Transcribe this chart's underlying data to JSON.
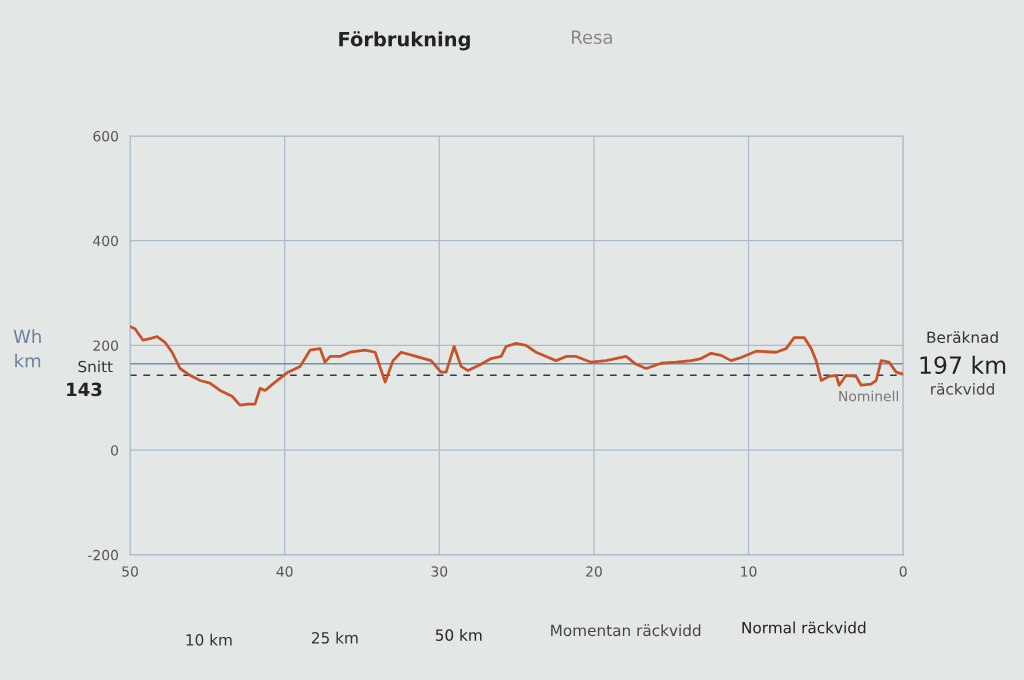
{
  "chart_data": {
    "type": "line",
    "title": "Förbrukning",
    "ylabel": "Wh\nkm",
    "x": [
      50,
      49.68,
      49.16,
      48.71,
      48.25,
      47.74,
      47.28,
      46.77,
      46.12,
      45.47,
      44.83,
      44.18,
      43.4,
      42.89,
      42.37,
      41.92,
      41.59,
      41.27,
      40.62,
      39.78,
      39.0,
      38.36,
      37.71,
      37.39,
      37.06,
      36.42,
      35.77,
      34.8,
      34.15,
      33.5,
      32.99,
      32.47,
      31.5,
      30.53,
      29.89,
      29.56,
      29.04,
      28.59,
      28.14,
      27.3,
      26.65,
      26.0,
      25.68,
      25.03,
      24.39,
      23.74,
      23.09,
      22.45,
      21.8,
      21.15,
      20.18,
      19.21,
      17.92,
      17.27,
      16.62,
      15.65,
      14.68,
      13.71,
      13.07,
      12.42,
      11.77,
      11.13,
      10.48,
      9.51,
      8.22,
      7.57,
      7.05,
      6.4,
      5.95,
      5.63,
      5.3,
      4.79,
      4.33,
      4.14,
      3.69,
      3.04,
      2.72,
      2.08,
      1.75,
      1.42,
      0.91,
      0.45,
      0.0
    ],
    "values": [
      236,
      232,
      210,
      213,
      217,
      206,
      187,
      156,
      143,
      133,
      128,
      114,
      103,
      86,
      88,
      88,
      118,
      114,
      130,
      149,
      160,
      191,
      194,
      168,
      179,
      179,
      187,
      191,
      187,
      130,
      171,
      187,
      179,
      171,
      149,
      149,
      198,
      160,
      152,
      164,
      175,
      179,
      198,
      204,
      200,
      187,
      179,
      171,
      179,
      179,
      168,
      171,
      179,
      164,
      156,
      166,
      168,
      171,
      175,
      185,
      181,
      171,
      177,
      189,
      187,
      194,
      215,
      215,
      194,
      171,
      133,
      141,
      143,
      124,
      143,
      141,
      124,
      126,
      133,
      171,
      168,
      149,
      145
    ],
    "color": "#c8532a",
    "line_style": "solid",
    "marker": "none",
    "xlim": [
      50,
      0
    ],
    "xticks": [
      50,
      40,
      30,
      20,
      10,
      0
    ],
    "ylim": [
      -200,
      600
    ],
    "yticks": [
      -200,
      0,
      200,
      400,
      600
    ],
    "grid": true,
    "ref_lines": [
      {
        "axis": "y",
        "value": 143,
        "label": "Snitt",
        "color": "#3a3a3a",
        "line_style": "dashed"
      },
      {
        "axis": "y",
        "value": 165,
        "label": "Nominell",
        "color": "#6f90aa",
        "line_style": "solid"
      }
    ],
    "annotations": [
      "143",
      "Resa",
      "Beräknad",
      "197 km",
      "räckvidd",
      "10 km",
      "25 km",
      "50 km",
      "Momentan räckvidd",
      "Normal räckvidd"
    ]
  }
}
